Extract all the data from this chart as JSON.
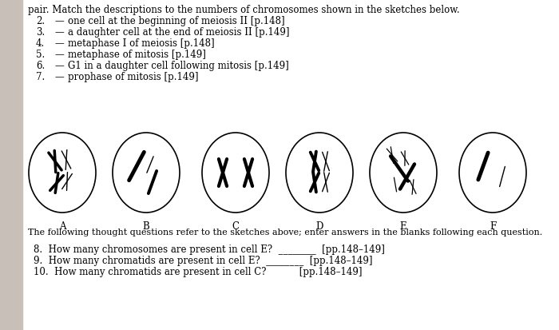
{
  "bg_color": "#ffffff",
  "left_margin_color": "#c8c0b8",
  "title_line": "pair. Match the descriptions to the numbers of chromosomes shown in the sketches below.",
  "items": [
    [
      "2.",
      "one cell at the beginning of meiosis II [p.148]"
    ],
    [
      "3.",
      "a daughter cell at the end of meiosis II [p.149]"
    ],
    [
      "4.",
      "metaphase I of meiosis [p.148]"
    ],
    [
      "5.",
      "metaphase of mitosis [p.149]"
    ],
    [
      "6.",
      "G1 in a daughter cell following mitosis [p.149]"
    ],
    [
      "7.",
      "prophase of mitosis [p.149]"
    ]
  ],
  "cell_labels": [
    "A",
    "B",
    "C",
    "D",
    "E",
    "F"
  ],
  "bottom_lines": [
    "The following thought questions refer to the sketches above; enter answers in the blanks following each question.",
    "8.  How many chromosomes are present in cell E?  ________  [pp.148–149]",
    "9.  How many chromatids are present in cell E?  ________  [pp.148–149]",
    "10.  How many chromatids are present in cell C?           [pp.148–149]"
  ],
  "font_size": 8.5,
  "font_size_bottom": 8.0
}
